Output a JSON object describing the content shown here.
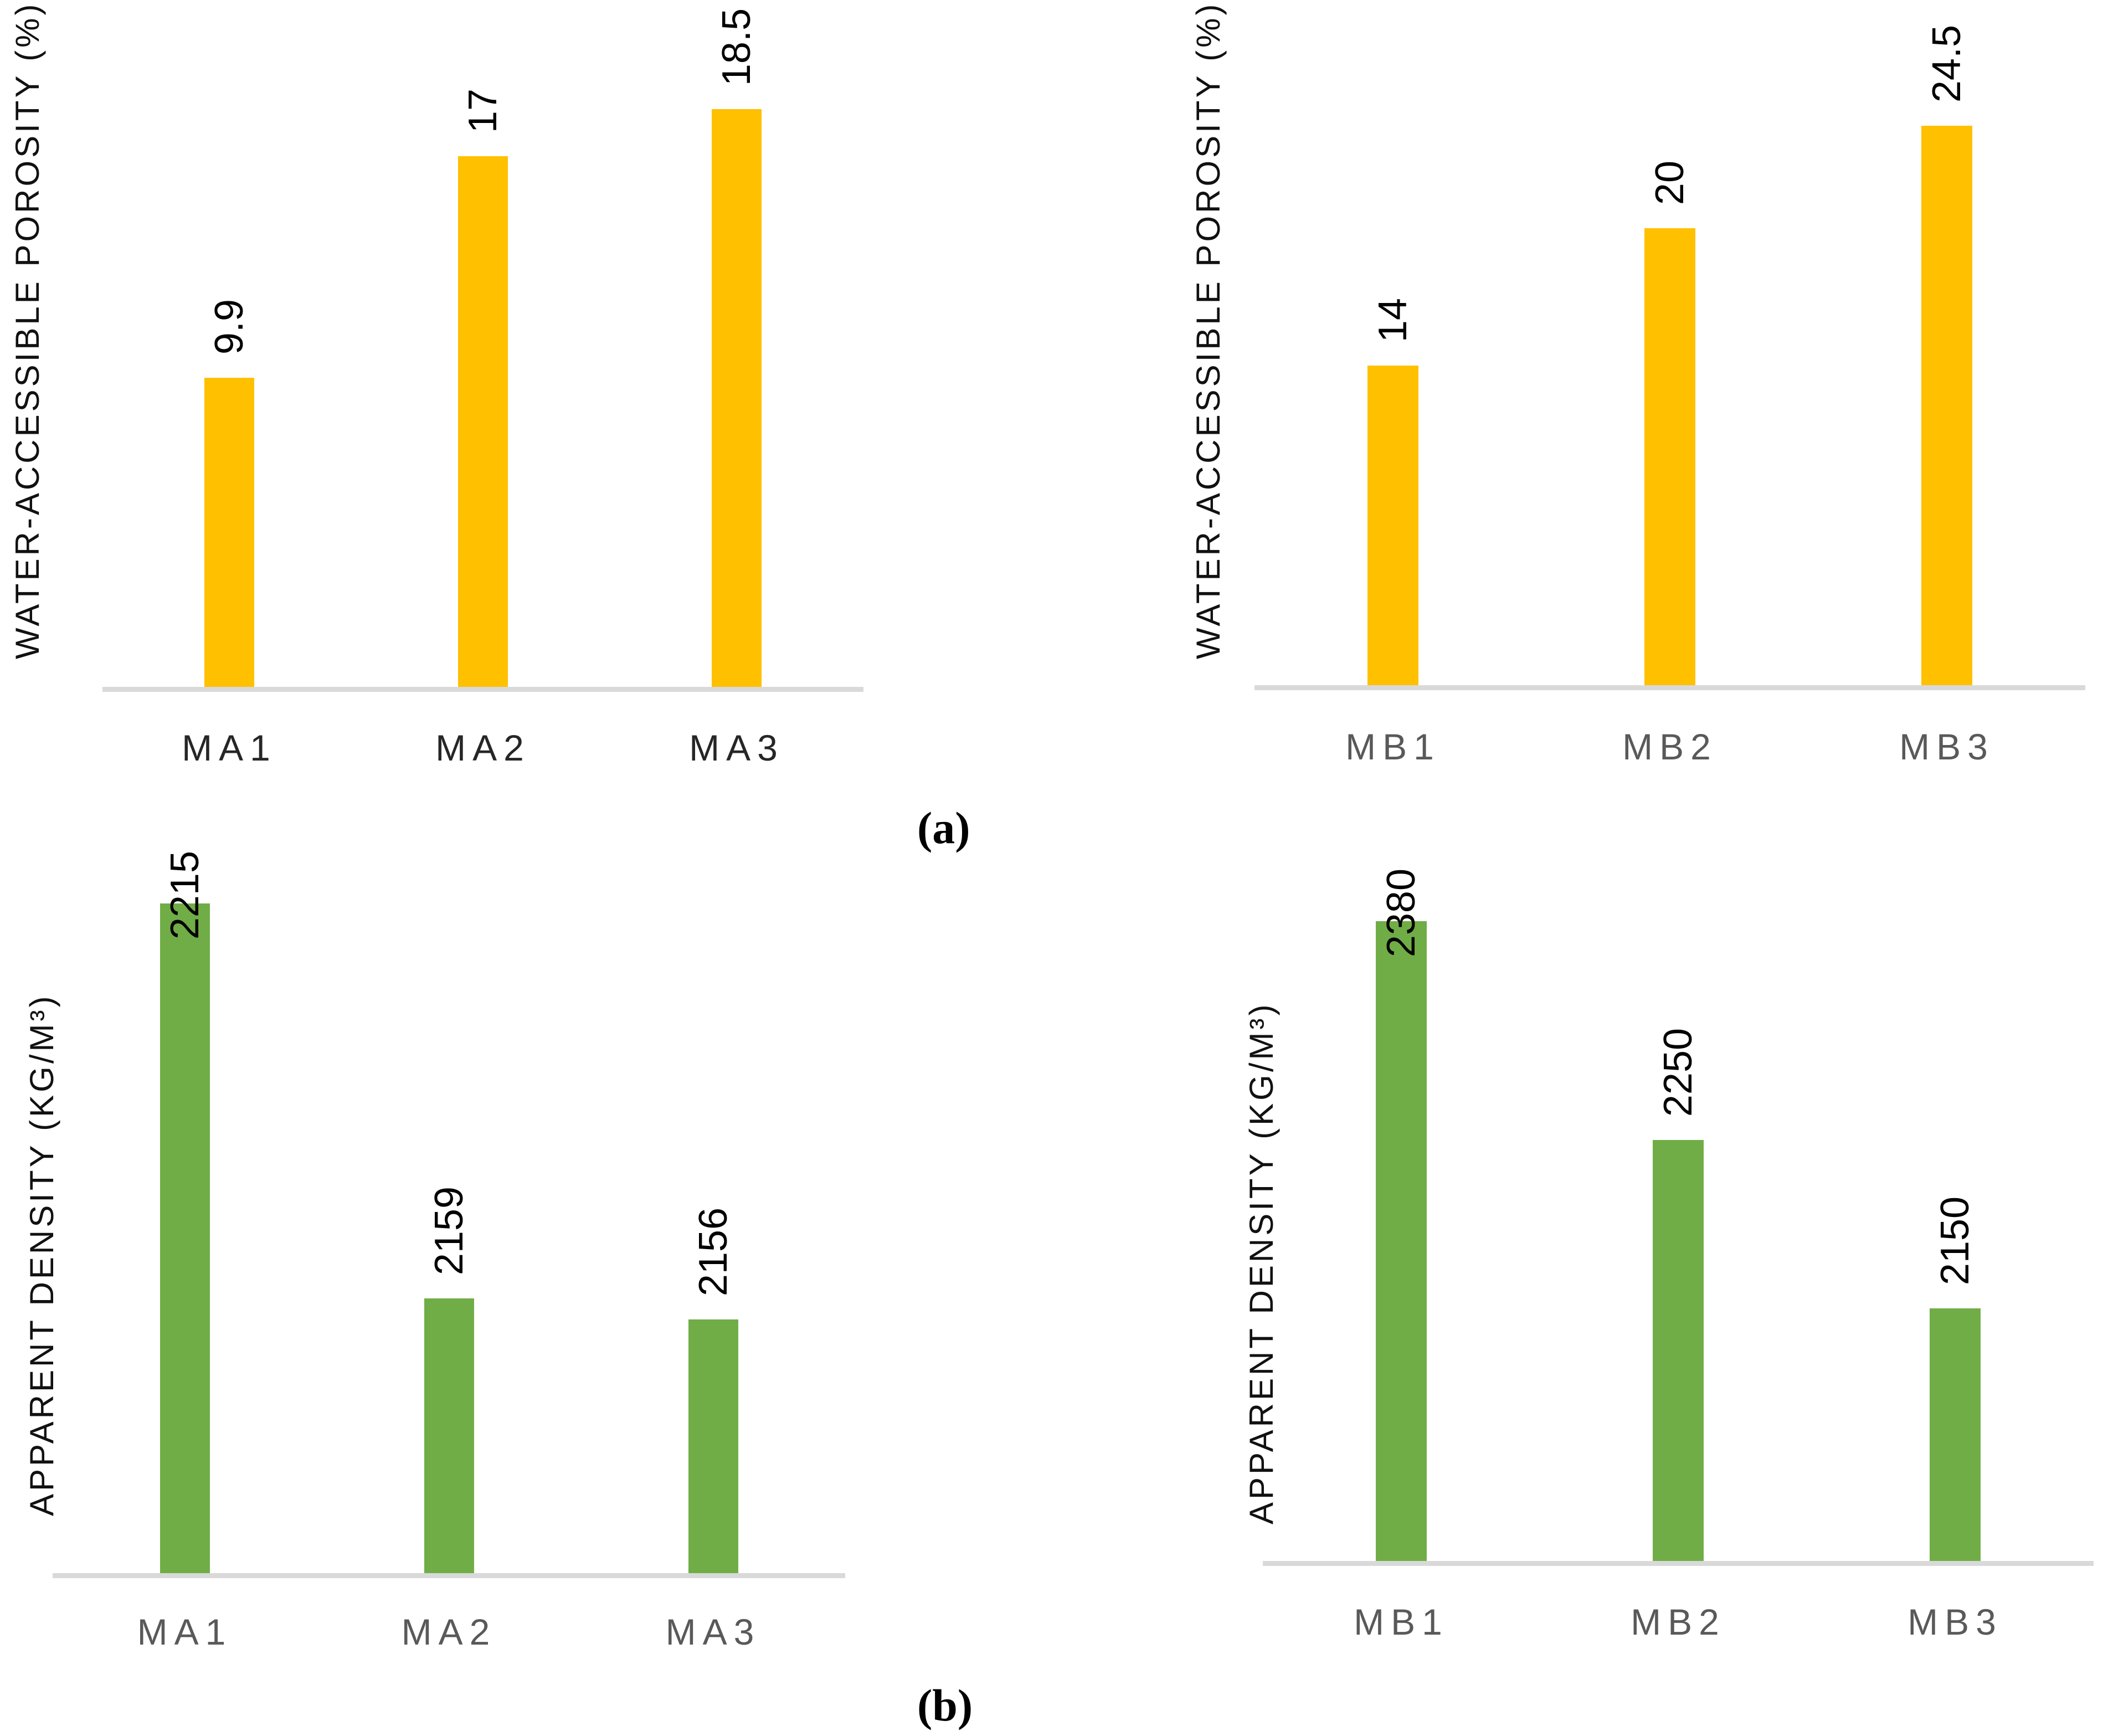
{
  "figure": {
    "panel_a_label": "(a)",
    "panel_b_label": "(b)"
  },
  "colors": {
    "bar_yellow": "#FFC000",
    "bar_green": "#70AD47",
    "axis_line": "#D9D9D9",
    "value_label": "#000000"
  },
  "chart_data": [
    {
      "id": "porosity-ma",
      "type": "bar",
      "title": "",
      "xlabel": "",
      "ylabel": "WATER-ACCESSIBLE POROSITY (%)",
      "categories": [
        "MA1",
        "MA2",
        "MA3"
      ],
      "values": [
        9.9,
        17,
        18.5
      ],
      "value_labels": [
        "9.9",
        "17",
        "18.5"
      ],
      "value_label_placement": [
        "outside",
        "outside",
        "outside"
      ],
      "ylim": [
        0,
        22
      ],
      "grid": false,
      "legend": "none",
      "value_label_rotation_deg": -90,
      "bar_color": "#FFC000",
      "category_label_color": "#262626"
    },
    {
      "id": "porosity-mb",
      "type": "bar",
      "title": "",
      "xlabel": "",
      "ylabel": "WATER-ACCESSIBLE POROSITY (%)",
      "categories": [
        "MB1",
        "MB2",
        "MB3"
      ],
      "values": [
        14,
        20,
        24.5
      ],
      "value_labels": [
        "14",
        "20",
        "24.5"
      ],
      "value_label_placement": [
        "outside",
        "outside",
        "outside"
      ],
      "ylim": [
        0,
        30
      ],
      "grid": false,
      "legend": "none",
      "value_label_rotation_deg": -90,
      "bar_color": "#FFC000",
      "category_label_color": "#595959"
    },
    {
      "id": "density-ma",
      "type": "bar",
      "title": "",
      "xlabel": "",
      "ylabel": "APPARENT DENSITY (KG/M³)",
      "categories": [
        "MA1",
        "MA2",
        "MA3"
      ],
      "values": [
        2215,
        2159,
        2156
      ],
      "value_labels": [
        "2215",
        "2159",
        "2156"
      ],
      "value_label_placement": [
        "inside",
        "outside",
        "outside"
      ],
      "ylim": [
        2120,
        2230
      ],
      "grid": false,
      "legend": "none",
      "value_label_rotation_deg": -90,
      "bar_color": "#70AD47",
      "category_label_color": "#595959"
    },
    {
      "id": "density-mb",
      "type": "bar",
      "title": "",
      "xlabel": "",
      "ylabel": "APPARENT DENSITY (KG/M³)",
      "categories": [
        "MB1",
        "MB2",
        "MB3"
      ],
      "values": [
        2380,
        2250,
        2150
      ],
      "value_labels": [
        "2380",
        "2250",
        "2150"
      ],
      "value_label_placement": [
        "inside",
        "outside",
        "outside"
      ],
      "ylim": [
        2000,
        2450
      ],
      "grid": false,
      "legend": "none",
      "value_label_rotation_deg": -90,
      "bar_color": "#70AD47",
      "category_label_color": "#595959"
    }
  ]
}
